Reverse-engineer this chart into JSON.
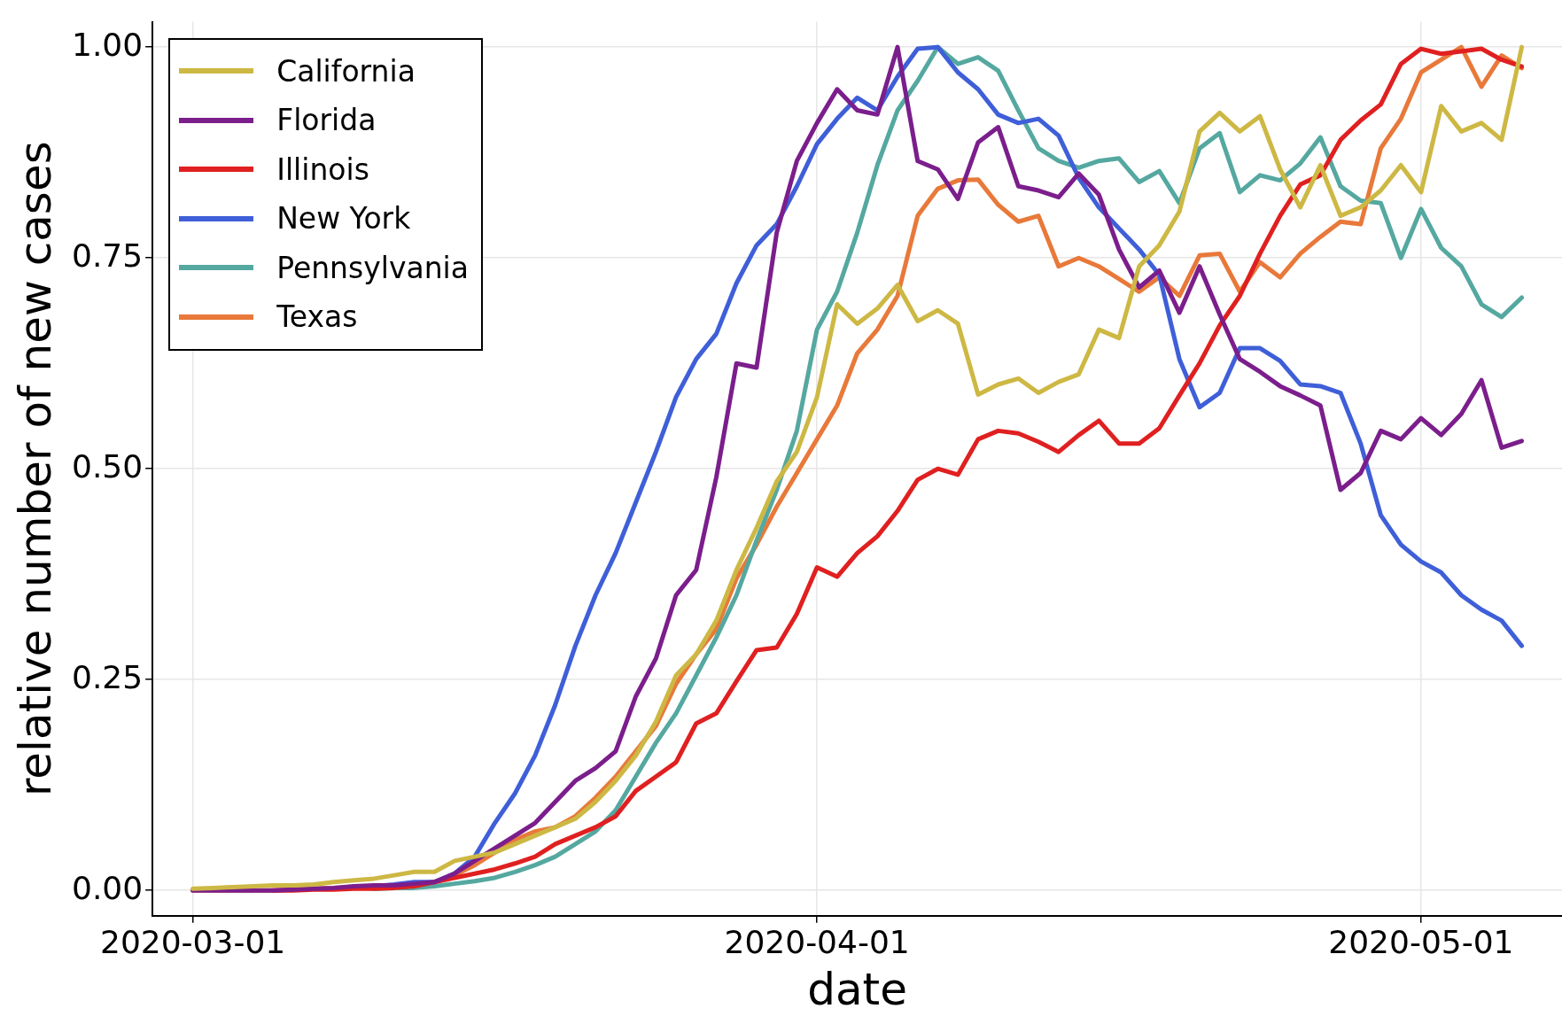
{
  "chart_data": {
    "type": "line",
    "xlabel": "date",
    "ylabel": "relative number of new cases",
    "x": [
      "2020-03-01",
      "2020-03-02",
      "2020-03-03",
      "2020-03-04",
      "2020-03-05",
      "2020-03-06",
      "2020-03-07",
      "2020-03-08",
      "2020-03-09",
      "2020-03-10",
      "2020-03-11",
      "2020-03-12",
      "2020-03-13",
      "2020-03-14",
      "2020-03-15",
      "2020-03-16",
      "2020-03-17",
      "2020-03-18",
      "2020-03-19",
      "2020-03-20",
      "2020-03-21",
      "2020-03-22",
      "2020-03-23",
      "2020-03-24",
      "2020-03-25",
      "2020-03-26",
      "2020-03-27",
      "2020-03-28",
      "2020-03-29",
      "2020-03-30",
      "2020-03-31",
      "2020-04-01",
      "2020-04-02",
      "2020-04-03",
      "2020-04-04",
      "2020-04-05",
      "2020-04-06",
      "2020-04-07",
      "2020-04-08",
      "2020-04-09",
      "2020-04-10",
      "2020-04-11",
      "2020-04-12",
      "2020-04-13",
      "2020-04-14",
      "2020-04-15",
      "2020-04-16",
      "2020-04-17",
      "2020-04-18",
      "2020-04-19",
      "2020-04-20",
      "2020-04-21",
      "2020-04-22",
      "2020-04-23",
      "2020-04-24",
      "2020-04-25",
      "2020-04-26",
      "2020-04-27",
      "2020-04-28",
      "2020-04-29",
      "2020-04-30",
      "2020-05-01",
      "2020-05-02",
      "2020-05-03",
      "2020-05-04",
      "2020-05-05",
      "2020-05-06"
    ],
    "series": [
      {
        "name": "California",
        "color": "#cdb844",
        "values": [
          0.002,
          0.003,
          0.004,
          0.005,
          0.006,
          0.006,
          0.007,
          0.01,
          0.012,
          0.014,
          0.018,
          0.022,
          0.022,
          0.035,
          0.04,
          0.045,
          0.055,
          0.065,
          0.075,
          0.085,
          0.105,
          0.13,
          0.16,
          0.2,
          0.255,
          0.28,
          0.32,
          0.38,
          0.43,
          0.485,
          0.52,
          0.585,
          0.695,
          0.672,
          0.69,
          0.718,
          0.675,
          0.688,
          0.672,
          0.588,
          0.6,
          0.607,
          0.59,
          0.603,
          0.612,
          0.665,
          0.655,
          0.74,
          0.765,
          0.805,
          0.9,
          0.922,
          0.9,
          0.918,
          0.855,
          0.81,
          0.86,
          0.8,
          0.81,
          0.83,
          0.86,
          0.828,
          0.93,
          0.9,
          0.91,
          0.89,
          1.0
        ]
      },
      {
        "name": "Florida",
        "color": "#7b1e8c",
        "values": [
          0,
          0,
          0,
          0,
          0,
          0.001,
          0.002,
          0.003,
          0.005,
          0.006,
          0.006,
          0.008,
          0.01,
          0.02,
          0.035,
          0.05,
          0.065,
          0.08,
          0.105,
          0.13,
          0.145,
          0.165,
          0.23,
          0.275,
          0.35,
          0.38,
          0.49,
          0.625,
          0.62,
          0.78,
          0.865,
          0.91,
          0.95,
          0.925,
          0.92,
          1.0,
          0.865,
          0.855,
          0.82,
          0.887,
          0.905,
          0.835,
          0.83,
          0.822,
          0.85,
          0.825,
          0.76,
          0.715,
          0.735,
          0.685,
          0.74,
          0.683,
          0.63,
          0.615,
          0.598,
          0.587,
          0.575,
          0.475,
          0.495,
          0.545,
          0.535,
          0.56,
          0.54,
          0.565,
          0.605,
          0.525,
          0.533
        ]
      },
      {
        "name": "Illinois",
        "color": "#e02020",
        "values": [
          null,
          null,
          null,
          null,
          0,
          0,
          0.001,
          0.001,
          0.002,
          0.002,
          0.003,
          0.005,
          0.01,
          0.015,
          0.02,
          0.025,
          0.032,
          0.04,
          0.055,
          0.065,
          0.075,
          0.088,
          0.118,
          0.135,
          0.152,
          0.198,
          0.21,
          0.248,
          0.285,
          0.288,
          0.328,
          0.383,
          0.372,
          0.4,
          0.42,
          0.45,
          0.487,
          0.5,
          0.493,
          0.535,
          0.545,
          0.542,
          0.532,
          0.52,
          0.54,
          0.557,
          0.53,
          0.53,
          0.548,
          0.587,
          0.625,
          0.67,
          0.705,
          0.755,
          0.8,
          0.837,
          0.848,
          0.89,
          0.913,
          0.932,
          0.98,
          0.998,
          0.992,
          0.995,
          0.998,
          0.985,
          0.977
        ]
      },
      {
        "name": "New York",
        "color": "#3f5fd8",
        "values": [
          null,
          null,
          null,
          null,
          null,
          null,
          null,
          null,
          null,
          0.005,
          0.007,
          0.01,
          0.01,
          0.02,
          0.04,
          0.08,
          0.115,
          0.16,
          0.22,
          0.29,
          0.35,
          0.4,
          0.46,
          0.52,
          0.585,
          0.63,
          0.66,
          0.72,
          0.765,
          0.79,
          0.835,
          0.885,
          0.915,
          0.94,
          0.925,
          0.965,
          0.998,
          1.0,
          0.97,
          0.95,
          0.92,
          0.91,
          0.915,
          0.895,
          0.845,
          0.81,
          0.785,
          0.76,
          0.73,
          0.63,
          0.573,
          0.59,
          0.643,
          0.643,
          0.628,
          0.6,
          0.598,
          0.59,
          0.53,
          0.445,
          0.41,
          0.39,
          0.377,
          0.35,
          0.333,
          0.32,
          0.29
        ]
      },
      {
        "name": "Pennsylvania",
        "color": "#55a8a0",
        "values": [
          null,
          null,
          null,
          null,
          null,
          null,
          null,
          null,
          null,
          0.002,
          0.003,
          0.003,
          0.005,
          0.008,
          0.011,
          0.015,
          0.022,
          0.03,
          0.04,
          0.055,
          0.07,
          0.095,
          0.135,
          0.175,
          0.21,
          0.255,
          0.3,
          0.35,
          0.415,
          0.475,
          0.545,
          0.665,
          0.71,
          0.78,
          0.86,
          0.925,
          0.96,
          1.0,
          0.98,
          0.988,
          0.972,
          0.925,
          0.88,
          0.865,
          0.857,
          0.865,
          0.868,
          0.84,
          0.853,
          0.815,
          0.88,
          0.898,
          0.828,
          0.848,
          0.842,
          0.862,
          0.893,
          0.835,
          0.818,
          0.815,
          0.75,
          0.808,
          0.762,
          0.74,
          0.695,
          0.68,
          0.703
        ]
      },
      {
        "name": "Texas",
        "color": "#e8793a",
        "values": [
          0,
          0,
          0,
          0,
          0,
          0.001,
          0.002,
          0.003,
          0.004,
          0.005,
          0.006,
          0.007,
          0.01,
          0.018,
          0.03,
          0.045,
          0.06,
          0.07,
          0.075,
          0.088,
          0.11,
          0.135,
          0.165,
          0.195,
          0.245,
          0.28,
          0.31,
          0.37,
          0.41,
          0.455,
          0.495,
          0.535,
          0.575,
          0.637,
          0.665,
          0.705,
          0.8,
          0.832,
          0.842,
          0.843,
          0.813,
          0.793,
          0.8,
          0.74,
          0.75,
          0.74,
          0.725,
          0.71,
          0.727,
          0.705,
          0.753,
          0.755,
          0.71,
          0.745,
          0.727,
          0.755,
          0.775,
          0.793,
          0.79,
          0.88,
          0.915,
          0.97,
          0.985,
          1.0,
          0.953,
          0.99,
          0.975
        ]
      }
    ],
    "xlim": [
      "2020-02-28",
      "2020-05-08"
    ],
    "xticks": [
      "2020-03-01",
      "2020-04-01",
      "2020-05-01"
    ],
    "ylim": [
      -0.03,
      1.03
    ],
    "yticks": [
      {
        "value": 0,
        "label": "0.00"
      },
      {
        "value": 0.25,
        "label": "0.25"
      },
      {
        "value": 0.5,
        "label": "0.50"
      },
      {
        "value": 0.75,
        "label": "0.75"
      },
      {
        "value": 1,
        "label": "1.00"
      }
    ],
    "grid": true,
    "legend": "top left",
    "line_style": "solid",
    "marker": "none"
  }
}
